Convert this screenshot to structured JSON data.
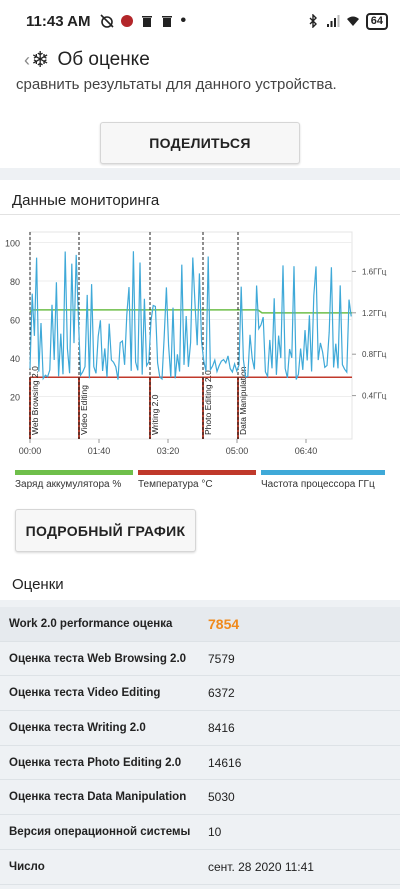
{
  "status": {
    "time": "11:43 AM",
    "battery": "64"
  },
  "appbar": {
    "back": "‹",
    "title": "Об оценке"
  },
  "top": {
    "cut_text": "сравнить результаты для данного устройства.",
    "share_label": "ПОДЕЛИТЬСЯ"
  },
  "monitoring": {
    "title": "Данные мониторинга",
    "detail_label": "ПОДРОБНЫЙ ГРАФИК",
    "scores_title": "Оценки",
    "legend": [
      {
        "label": "Заряд аккумулятора %",
        "color": "#6fbf4a"
      },
      {
        "label": "Температура °C",
        "color": "#c0392b"
      },
      {
        "label": "Частота процессора ГГц",
        "color": "#3fa9d8"
      }
    ]
  },
  "chart_data": {
    "type": "line",
    "y_left_ticks": [
      "100",
      "80",
      "60",
      "40",
      "20"
    ],
    "y_right_ticks": [
      "1.6ГГц",
      "1.2ГГц",
      "0.8ГГц",
      "0.4ГГц"
    ],
    "x_ticks": [
      "00:00",
      "01:40",
      "03:20",
      "05:00",
      "06:40"
    ],
    "markers": [
      "Web Browsing 2.0",
      "Video Editing",
      "Writing 2.0",
      "Photo Editing 2.0",
      "Data Manipulation"
    ],
    "ylim": [
      0,
      100
    ],
    "series": [
      {
        "name": "Заряд аккумулятора %",
        "color": "#6fbf4a",
        "values": [
          65,
          65,
          64,
          64,
          63
        ]
      },
      {
        "name": "Температура °C",
        "color": "#c0392b",
        "values": [
          30,
          31,
          30,
          30,
          31
        ]
      },
      {
        "name": "Частота процессора ГГц",
        "color": "#3fa9d8",
        "values": [
          0.6,
          1.4,
          0.7,
          1.3,
          0.9
        ]
      }
    ]
  },
  "scores": [
    {
      "label": "Work 2.0 performance оценка",
      "value": "7854"
    },
    {
      "label": "Оценка теста Web Browsing 2.0",
      "value": "7579"
    },
    {
      "label": "Оценка теста Video Editing",
      "value": "6372"
    },
    {
      "label": "Оценка теста Writing 2.0",
      "value": "8416"
    },
    {
      "label": "Оценка теста Photo Editing 2.0",
      "value": "14616"
    },
    {
      "label": "Оценка теста Data Manipulation",
      "value": "5030"
    },
    {
      "label": "Версия операционной системы",
      "value": "10"
    },
    {
      "label": "Число",
      "value": "сент. 28 2020 11:41"
    }
  ]
}
